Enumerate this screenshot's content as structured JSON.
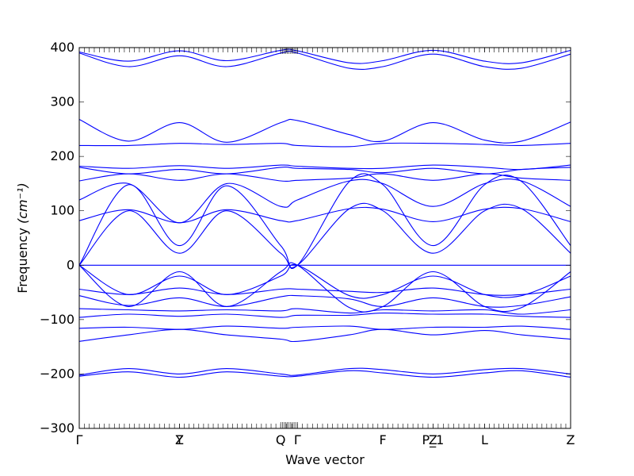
{
  "chart_data": {
    "type": "line",
    "title": "",
    "xlabel": "Wave vector",
    "ylabel": "Frequency",
    "ylabel_unit": "(cm⁻¹)",
    "ylim": [
      -300,
      400
    ],
    "yticks": [
      -300,
      -200,
      -100,
      0,
      100,
      200,
      300,
      400
    ],
    "grid": false,
    "legend": "none",
    "colors": {
      "band": "#0000ff",
      "axis": "#000000"
    },
    "xlim": [
      0,
      1
    ],
    "kpoints": [
      {
        "label": "Γ",
        "x": 0.0
      },
      {
        "label": "Y",
        "x": 0.204
      },
      {
        "label": "Z",
        "x": 0.204
      },
      {
        "label": "Q",
        "x": 0.41
      },
      {
        "label": "Γ",
        "x": 0.444
      },
      {
        "label": "F",
        "x": 0.618
      },
      {
        "label": "P_1",
        "x": 0.72
      },
      {
        "label": "Z",
        "x": 0.72
      },
      {
        "label": "L",
        "x": 0.825
      },
      {
        "label": "Z",
        "x": 1.0
      }
    ],
    "series": [
      {
        "points": [
          [
            0,
            390
          ],
          [
            0.1,
            365
          ],
          [
            0.204,
            385
          ],
          [
            0.3,
            365
          ],
          [
            0.41,
            390
          ],
          [
            0.444,
            390
          ],
          [
            0.55,
            362
          ],
          [
            0.618,
            365
          ],
          [
            0.72,
            388
          ],
          [
            0.825,
            365
          ],
          [
            0.9,
            362
          ],
          [
            1.0,
            388
          ]
        ]
      },
      {
        "points": [
          [
            0,
            392
          ],
          [
            0.1,
            375
          ],
          [
            0.204,
            394
          ],
          [
            0.3,
            376
          ],
          [
            0.41,
            395
          ],
          [
            0.444,
            394
          ],
          [
            0.55,
            372
          ],
          [
            0.618,
            376
          ],
          [
            0.72,
            395
          ],
          [
            0.825,
            375
          ],
          [
            0.9,
            372
          ],
          [
            1.0,
            395
          ]
        ]
      },
      {
        "points": [
          [
            0,
            268
          ],
          [
            0.1,
            228
          ],
          [
            0.204,
            262
          ],
          [
            0.3,
            226
          ],
          [
            0.41,
            262
          ],
          [
            0.444,
            266
          ],
          [
            0.55,
            240
          ],
          [
            0.618,
            228
          ],
          [
            0.72,
            262
          ],
          [
            0.825,
            230
          ],
          [
            0.9,
            228
          ],
          [
            1.0,
            263
          ]
        ]
      },
      {
        "points": [
          [
            0,
            220
          ],
          [
            0.1,
            220
          ],
          [
            0.204,
            224
          ],
          [
            0.3,
            222
          ],
          [
            0.41,
            224
          ],
          [
            0.444,
            220
          ],
          [
            0.55,
            218
          ],
          [
            0.618,
            224
          ],
          [
            0.72,
            224
          ],
          [
            0.825,
            222
          ],
          [
            0.9,
            220
          ],
          [
            1.0,
            224
          ]
        ]
      },
      {
        "points": [
          [
            0,
            182
          ],
          [
            0.1,
            178
          ],
          [
            0.204,
            183
          ],
          [
            0.3,
            178
          ],
          [
            0.41,
            184
          ],
          [
            0.444,
            182
          ],
          [
            0.55,
            178
          ],
          [
            0.618,
            178
          ],
          [
            0.72,
            184
          ],
          [
            0.825,
            180
          ],
          [
            0.9,
            176
          ],
          [
            1.0,
            184
          ]
        ]
      },
      {
        "points": [
          [
            0,
            180
          ],
          [
            0.1,
            168
          ],
          [
            0.204,
            176
          ],
          [
            0.3,
            168
          ],
          [
            0.41,
            180
          ],
          [
            0.444,
            178
          ],
          [
            0.55,
            176
          ],
          [
            0.618,
            170
          ],
          [
            0.72,
            178
          ],
          [
            0.825,
            168
          ],
          [
            0.9,
            176
          ],
          [
            1.0,
            180
          ]
        ]
      },
      {
        "points": [
          [
            0,
            155
          ],
          [
            0.1,
            168
          ],
          [
            0.204,
            156
          ],
          [
            0.3,
            168
          ],
          [
            0.41,
            155
          ],
          [
            0.444,
            156
          ],
          [
            0.55,
            160
          ],
          [
            0.618,
            168
          ],
          [
            0.72,
            156
          ],
          [
            0.825,
            168
          ],
          [
            0.9,
            160
          ],
          [
            1.0,
            156
          ]
        ]
      },
      {
        "points": [
          [
            0,
            120
          ],
          [
            0.1,
            150
          ],
          [
            0.204,
            78
          ],
          [
            0.3,
            150
          ],
          [
            0.41,
            108
          ],
          [
            0.444,
            120
          ],
          [
            0.55,
            155
          ],
          [
            0.618,
            150
          ],
          [
            0.72,
            108
          ],
          [
            0.825,
            150
          ],
          [
            0.9,
            155
          ],
          [
            1.0,
            108
          ]
        ]
      },
      {
        "points": [
          [
            0,
            82
          ],
          [
            0.1,
            102
          ],
          [
            0.204,
            78
          ],
          [
            0.3,
            102
          ],
          [
            0.41,
            82
          ],
          [
            0.444,
            82
          ],
          [
            0.55,
            104
          ],
          [
            0.618,
            103
          ],
          [
            0.72,
            80
          ],
          [
            0.825,
            103
          ],
          [
            0.9,
            104
          ],
          [
            1.0,
            80
          ]
        ]
      },
      {
        "points": [
          [
            0,
            0
          ],
          [
            0.1,
            148
          ],
          [
            0.204,
            36
          ],
          [
            0.3,
            146
          ],
          [
            0.41,
            36
          ],
          [
            0.444,
            0
          ],
          [
            0.55,
            154
          ],
          [
            0.618,
            148
          ],
          [
            0.72,
            36
          ],
          [
            0.825,
            148
          ],
          [
            0.9,
            154
          ],
          [
            1.0,
            36
          ]
        ]
      },
      {
        "points": [
          [
            0,
            0
          ],
          [
            0.1,
            100
          ],
          [
            0.204,
            22
          ],
          [
            0.3,
            100
          ],
          [
            0.41,
            22
          ],
          [
            0.444,
            0
          ],
          [
            0.55,
            104
          ],
          [
            0.618,
            100
          ],
          [
            0.72,
            22
          ],
          [
            0.825,
            100
          ],
          [
            0.9,
            104
          ],
          [
            1.0,
            22
          ]
        ]
      },
      {
        "points": [
          [
            0,
            0
          ],
          [
            0.444,
            0
          ],
          [
            1.0,
            0
          ]
        ]
      },
      {
        "points": [
          [
            0,
            0
          ],
          [
            0.1,
            -76
          ],
          [
            0.204,
            -12
          ],
          [
            0.3,
            -76
          ],
          [
            0.41,
            -12
          ],
          [
            0.444,
            0
          ],
          [
            0.55,
            -78
          ],
          [
            0.618,
            -76
          ],
          [
            0.72,
            -12
          ],
          [
            0.825,
            -76
          ],
          [
            0.9,
            -78
          ],
          [
            1.0,
            -12
          ]
        ]
      },
      {
        "points": [
          [
            0,
            0
          ],
          [
            0.1,
            -54
          ],
          [
            0.204,
            -20
          ],
          [
            0.3,
            -54
          ],
          [
            0.41,
            -20
          ],
          [
            0.444,
            0
          ],
          [
            0.55,
            -56
          ],
          [
            0.618,
            -54
          ],
          [
            0.72,
            -20
          ],
          [
            0.825,
            -54
          ],
          [
            0.9,
            -56
          ],
          [
            1.0,
            -20
          ]
        ]
      },
      {
        "points": [
          [
            0,
            -44
          ],
          [
            0.1,
            -54
          ],
          [
            0.204,
            -42
          ],
          [
            0.3,
            -54
          ],
          [
            0.41,
            -44
          ],
          [
            0.444,
            -44
          ],
          [
            0.55,
            -48
          ],
          [
            0.618,
            -50
          ],
          [
            0.72,
            -42
          ],
          [
            0.825,
            -54
          ],
          [
            0.9,
            -54
          ],
          [
            1.0,
            -44
          ]
        ]
      },
      {
        "points": [
          [
            0,
            -56
          ],
          [
            0.1,
            -74
          ],
          [
            0.204,
            -60
          ],
          [
            0.3,
            -76
          ],
          [
            0.41,
            -58
          ],
          [
            0.444,
            -56
          ],
          [
            0.55,
            -62
          ],
          [
            0.618,
            -76
          ],
          [
            0.72,
            -60
          ],
          [
            0.825,
            -76
          ],
          [
            0.9,
            -74
          ],
          [
            1.0,
            -58
          ]
        ]
      },
      {
        "points": [
          [
            0,
            -80
          ],
          [
            0.1,
            -82
          ],
          [
            0.204,
            -84
          ],
          [
            0.3,
            -82
          ],
          [
            0.41,
            -84
          ],
          [
            0.444,
            -80
          ],
          [
            0.55,
            -88
          ],
          [
            0.618,
            -82
          ],
          [
            0.72,
            -84
          ],
          [
            0.825,
            -82
          ],
          [
            0.9,
            -90
          ],
          [
            1.0,
            -82
          ]
        ]
      },
      {
        "points": [
          [
            0,
            -96
          ],
          [
            0.1,
            -90
          ],
          [
            0.204,
            -94
          ],
          [
            0.3,
            -90
          ],
          [
            0.41,
            -96
          ],
          [
            0.444,
            -92
          ],
          [
            0.55,
            -92
          ],
          [
            0.618,
            -88
          ],
          [
            0.72,
            -90
          ],
          [
            0.825,
            -90
          ],
          [
            0.9,
            -94
          ],
          [
            1.0,
            -96
          ]
        ]
      },
      {
        "points": [
          [
            0,
            -116
          ],
          [
            0.1,
            -114
          ],
          [
            0.204,
            -118
          ],
          [
            0.3,
            -112
          ],
          [
            0.41,
            -116
          ],
          [
            0.444,
            -114
          ],
          [
            0.55,
            -112
          ],
          [
            0.618,
            -118
          ],
          [
            0.72,
            -114
          ],
          [
            0.825,
            -114
          ],
          [
            0.9,
            -112
          ],
          [
            1.0,
            -118
          ]
        ]
      },
      {
        "points": [
          [
            0,
            -140
          ],
          [
            0.1,
            -128
          ],
          [
            0.204,
            -118
          ],
          [
            0.3,
            -128
          ],
          [
            0.41,
            -136
          ],
          [
            0.444,
            -140
          ],
          [
            0.55,
            -128
          ],
          [
            0.618,
            -118
          ],
          [
            0.72,
            -128
          ],
          [
            0.825,
            -120
          ],
          [
            0.9,
            -128
          ],
          [
            1.0,
            -136
          ]
        ]
      },
      {
        "points": [
          [
            0,
            -202
          ],
          [
            0.1,
            -190
          ],
          [
            0.204,
            -200
          ],
          [
            0.3,
            -190
          ],
          [
            0.41,
            -200
          ],
          [
            0.444,
            -202
          ],
          [
            0.55,
            -190
          ],
          [
            0.618,
            -192
          ],
          [
            0.72,
            -200
          ],
          [
            0.825,
            -192
          ],
          [
            0.9,
            -190
          ],
          [
            1.0,
            -200
          ]
        ]
      },
      {
        "points": [
          [
            0,
            -204
          ],
          [
            0.1,
            -196
          ],
          [
            0.204,
            -206
          ],
          [
            0.3,
            -196
          ],
          [
            0.41,
            -204
          ],
          [
            0.444,
            -204
          ],
          [
            0.55,
            -194
          ],
          [
            0.618,
            -198
          ],
          [
            0.72,
            -206
          ],
          [
            0.825,
            -198
          ],
          [
            0.9,
            -194
          ],
          [
            1.0,
            -206
          ]
        ]
      }
    ]
  }
}
